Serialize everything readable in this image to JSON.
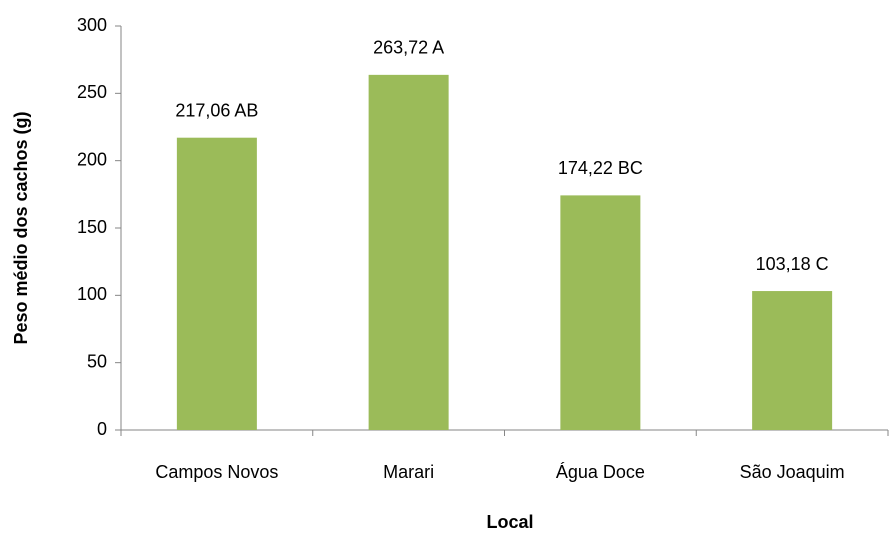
{
  "chart_data": {
    "type": "bar",
    "y_label": "Peso médio dos cachos  (g)",
    "x_label": "Local",
    "categories": [
      "Campos Novos",
      "Marari",
      "Água Doce",
      "São Joaquim"
    ],
    "values": [
      217.06,
      263.72,
      174.22,
      103.18
    ],
    "value_labels": [
      "217,06 AB",
      "263,72 A",
      "174,22 BC",
      "103,18 C"
    ],
    "color": "#9bbb59",
    "ylim": [
      0,
      300
    ],
    "yticks": [
      0,
      50,
      100,
      150,
      200,
      250,
      300
    ],
    "grid": false
  }
}
